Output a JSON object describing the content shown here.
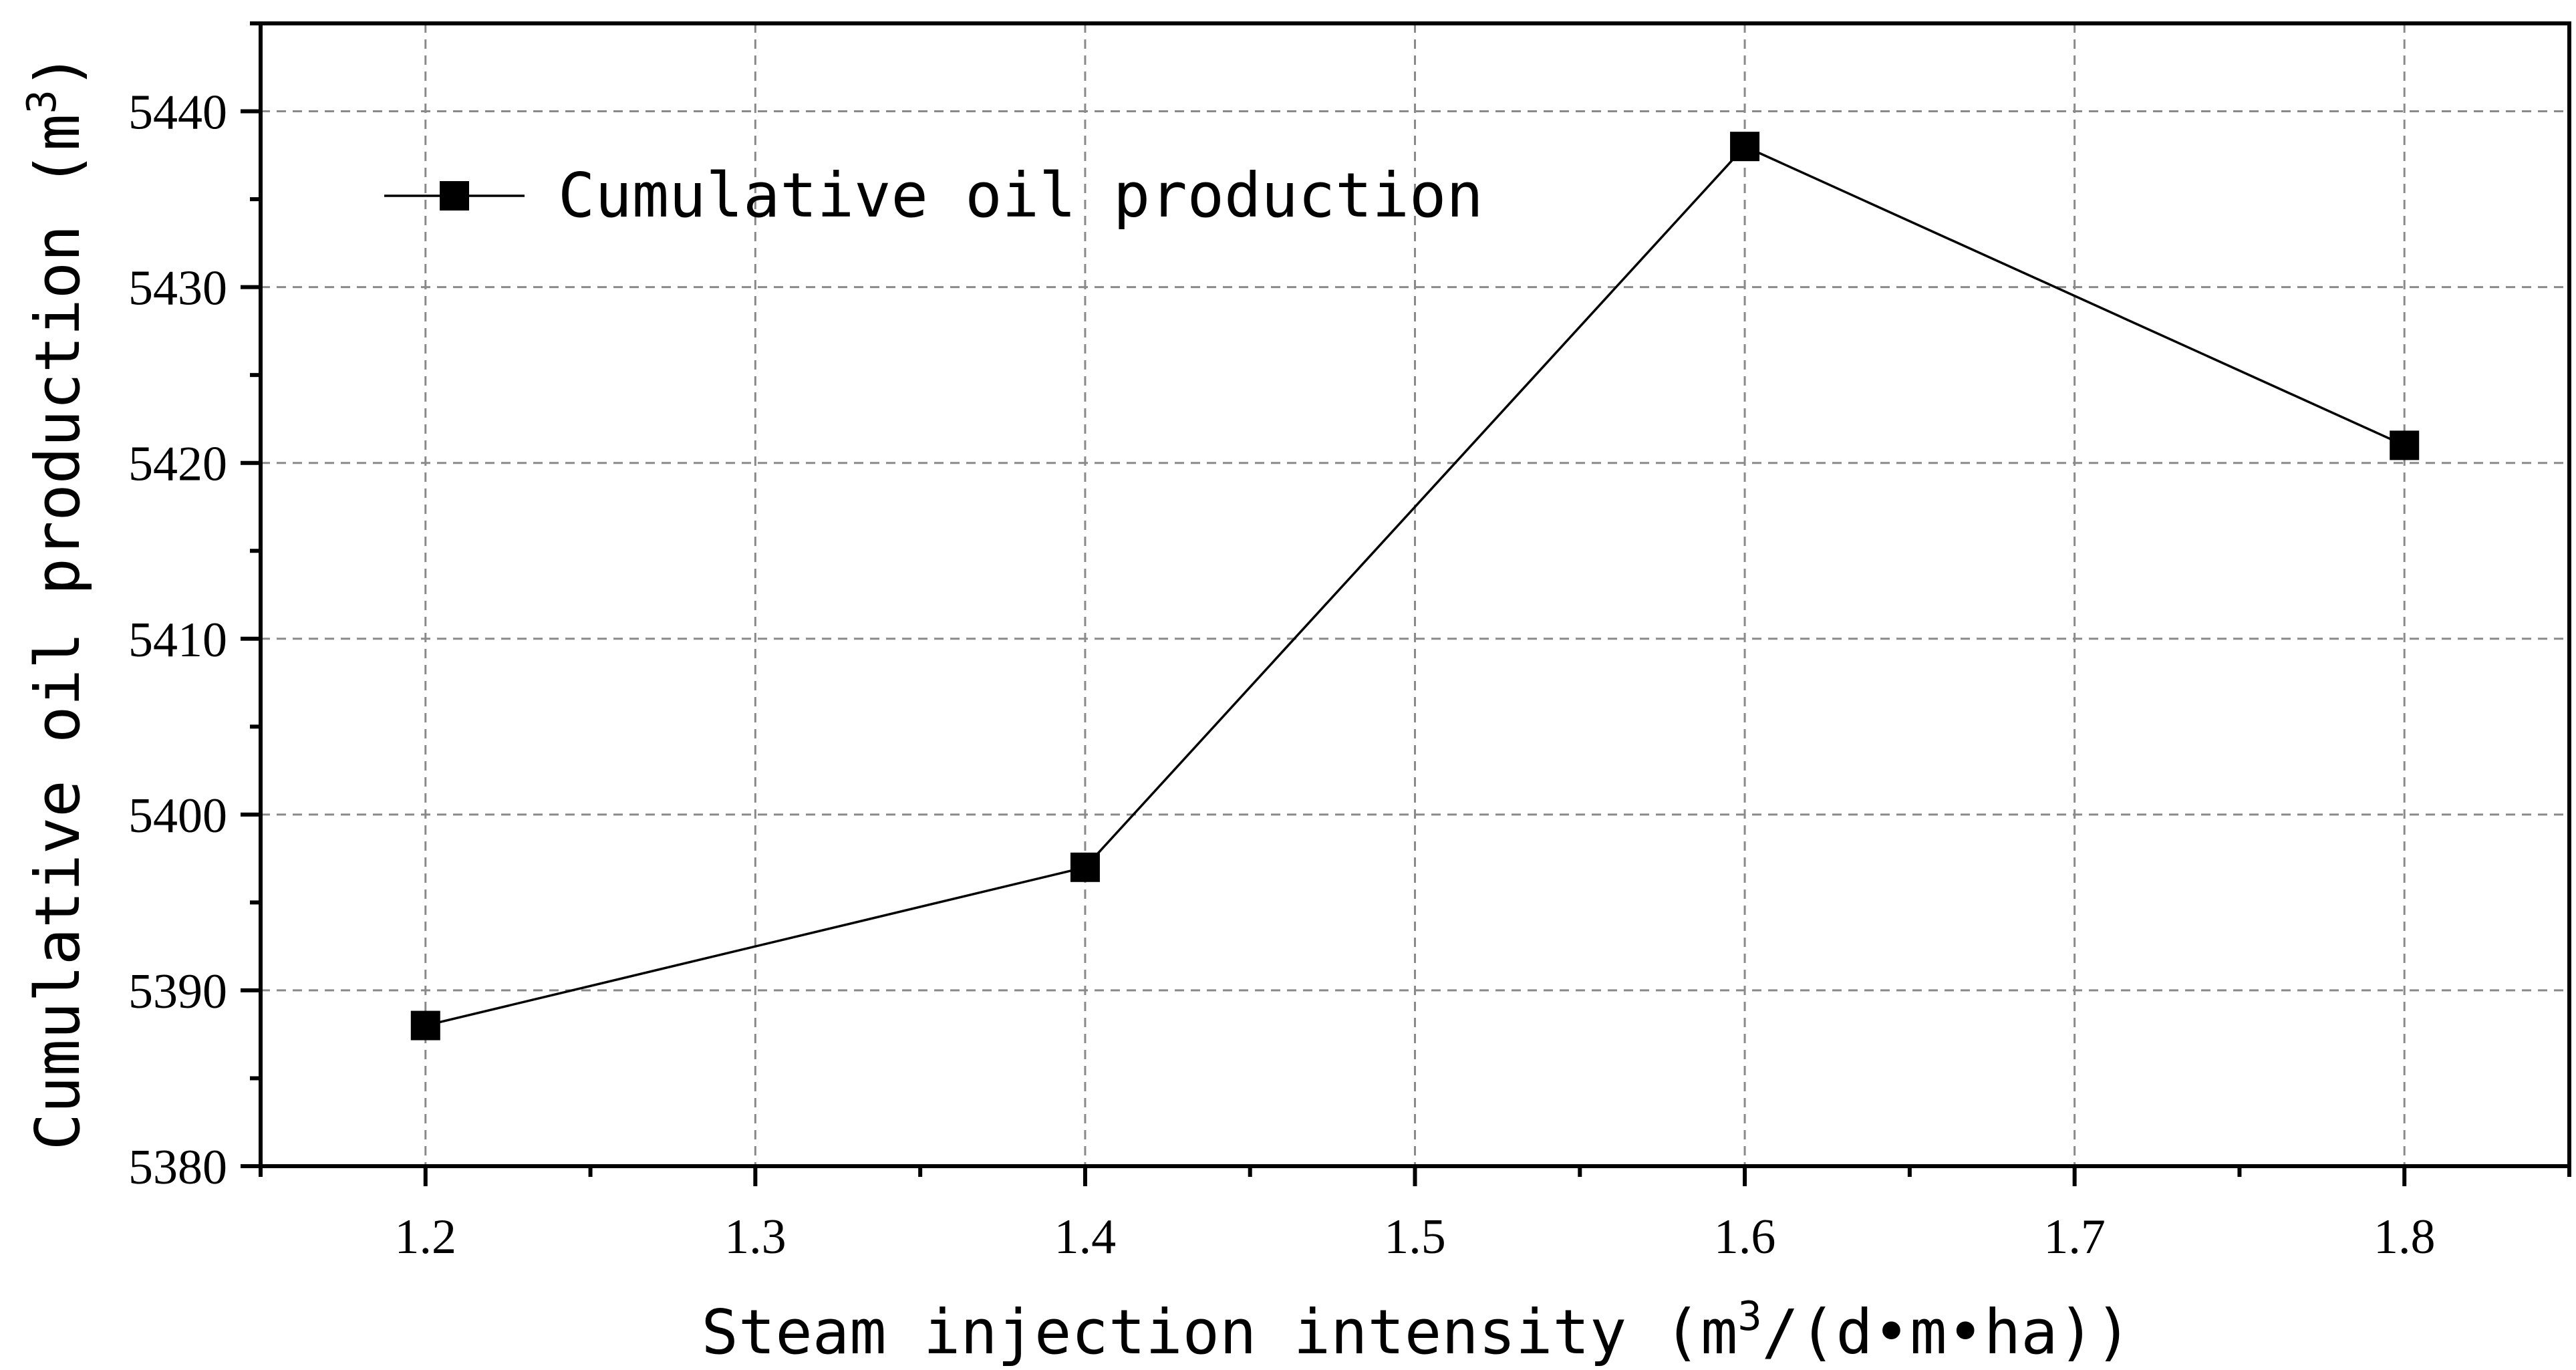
{
  "chart_data": {
    "type": "line",
    "title": "",
    "xlabel": "Steam injection intensity (m",
    "xlabel_unit_sup": "3",
    "xlabel_unit_rest": "/(d•m•ha))",
    "ylabel": "Cumulative oil production (m",
    "ylabel_unit_sup": "3",
    "ylabel_unit_rest": ")",
    "xlim": [
      1.15,
      1.85
    ],
    "ylim": [
      5380,
      5445
    ],
    "x_ticks": [
      1.2,
      1.3,
      1.4,
      1.5,
      1.6,
      1.7,
      1.8
    ],
    "x_tick_labels": [
      "1.2",
      "1.3",
      "1.4",
      "1.5",
      "1.6",
      "1.7",
      "1.8"
    ],
    "y_ticks": [
      5380,
      5390,
      5400,
      5410,
      5420,
      5430,
      5440
    ],
    "y_tick_labels": [
      "5380",
      "5390",
      "5400",
      "5410",
      "5420",
      "5430",
      "5440"
    ],
    "grid": true,
    "legend_position": "top-left",
    "series": [
      {
        "name": "Cumulative oil production",
        "marker": "square",
        "color": "#000000",
        "x": [
          1.2,
          1.4,
          1.6,
          1.8
        ],
        "values": [
          5388,
          5397,
          5438,
          5421
        ]
      }
    ]
  }
}
